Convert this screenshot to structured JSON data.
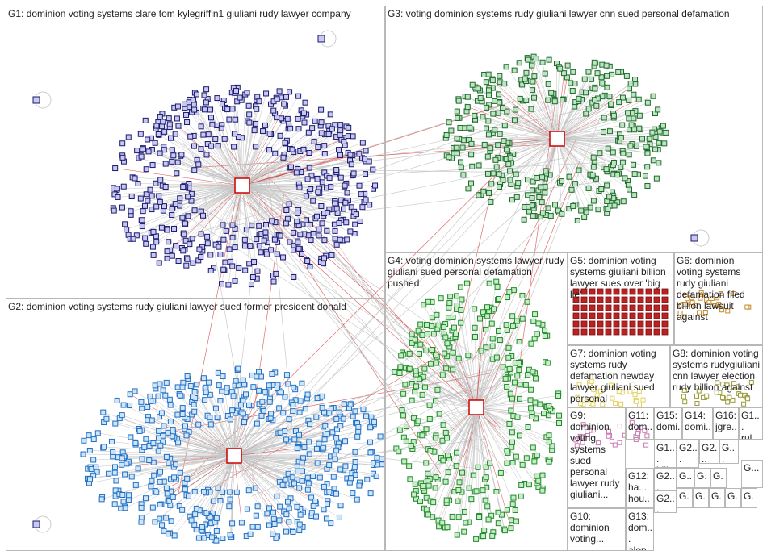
{
  "groups": [
    {
      "label": "G1: dominion voting systems clare tom kylegriffin1 giuliani rudy lawyer company"
    },
    {
      "label": "G3: voting dominion systems rudy giuliani lawyer cnn sued personal defamation"
    },
    {
      "label": "G2: dominion voting systems rudy giuliani lawyer sued former president donald"
    },
    {
      "label": "G4: voting dominion systems lawyer rudy giuliani sued personal defamation pushed"
    },
    {
      "label": "G5: dominion voting systems giuliani billion lawyer sues over 'big lie'"
    },
    {
      "label": "G6: dominion voting systems rudy giuliani defamation filed billion lawsuit against"
    },
    {
      "label": "G7: dominion voting systems rudy defamation newday lawyer giuliani sued personal"
    },
    {
      "label": "G8: dominion voting systems rudygiuliani cnn lawyer election rudy billion against"
    },
    {
      "label": "G9: dominion voting systems sued personal lawyer rudy giuliani..."
    },
    {
      "label": "G10: dominion voting..."
    },
    {
      "label": "G11: dom... dom... votin..."
    },
    {
      "label": "G15: domi..."
    },
    {
      "label": "G14: domi..."
    },
    {
      "label": "G16: jgre..."
    },
    {
      "label": "G1... rul..."
    },
    {
      "label": "G12: ha... hou..."
    },
    {
      "label": "G13: dom... alon..."
    },
    {
      "label": "G1... bill..."
    },
    {
      "label": "G2..."
    },
    {
      "label": "G2..."
    },
    {
      "label": "G..."
    },
    {
      "label": "G2..."
    },
    {
      "label": "G..."
    },
    {
      "label": "G..."
    },
    {
      "label": "G..."
    },
    {
      "label": "G2..."
    },
    {
      "label": "G..."
    },
    {
      "label": "G..."
    },
    {
      "label": "G..."
    },
    {
      "label": "G..."
    },
    {
      "label": "G..."
    },
    {
      "label": "G..."
    }
  ]
}
